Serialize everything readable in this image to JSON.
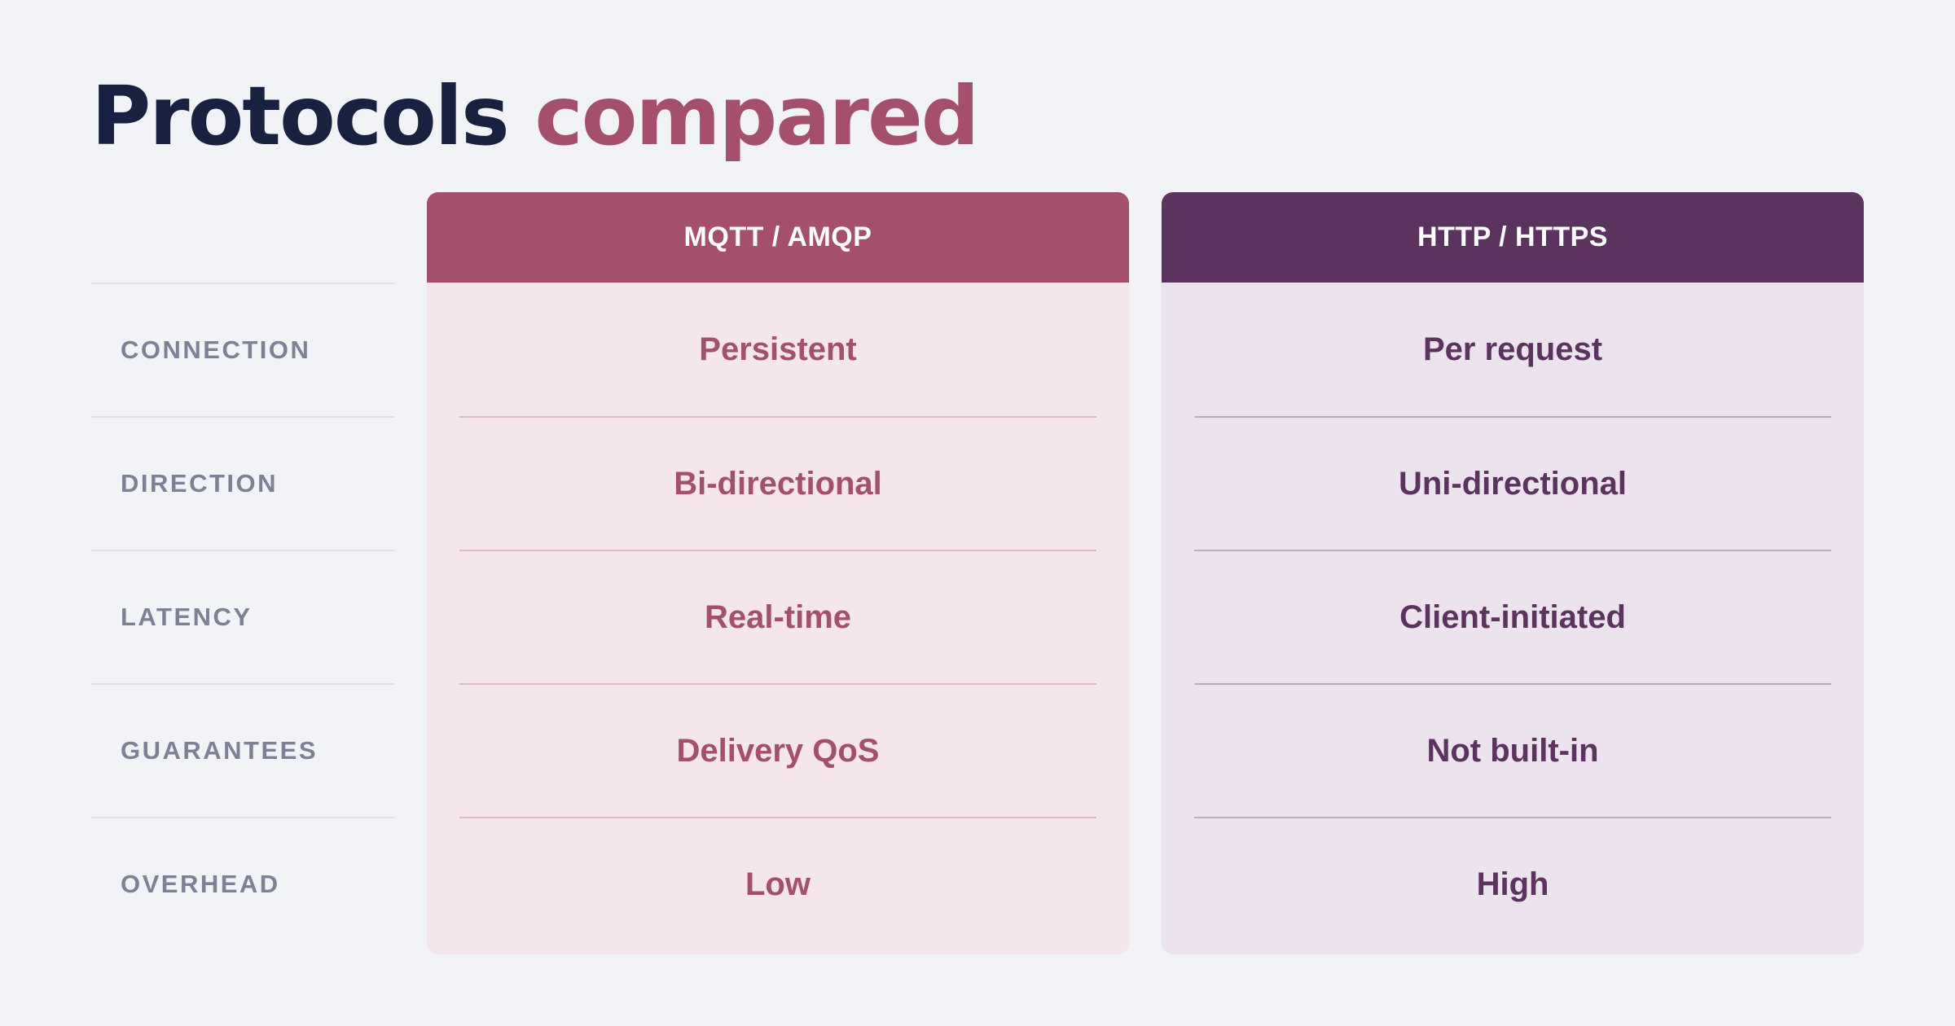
{
  "title": {
    "part1": "Protocols",
    "part2": "compared"
  },
  "rows": [
    {
      "label": "CONNECTION"
    },
    {
      "label": "DIRECTION"
    },
    {
      "label": "LATENCY"
    },
    {
      "label": "GUARANTEES"
    },
    {
      "label": "OVERHEAD"
    }
  ],
  "columns": [
    {
      "header": "MQTT / AMQP",
      "accent_color": "#a44f6b",
      "values": [
        "Persistent",
        "Bi-directional",
        "Real-time",
        "Delivery QoS",
        "Low"
      ]
    },
    {
      "header": "HTTP / HTTPS",
      "accent_color": "#5b335e",
      "values": [
        "Per request",
        "Uni-directional",
        "Client-initiated",
        "Not built-in",
        "High"
      ]
    }
  ]
}
